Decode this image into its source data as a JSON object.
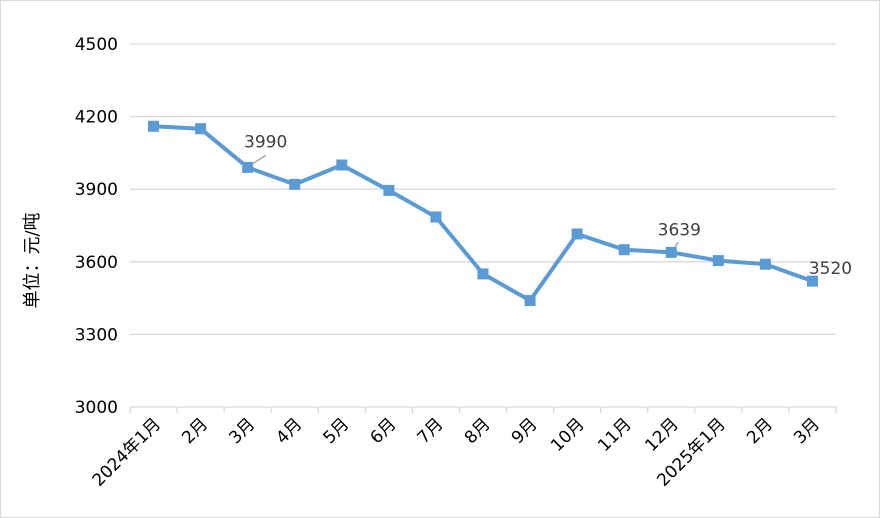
{
  "chart_data": {
    "type": "line",
    "title": "",
    "xlabel": "",
    "ylabel": "单位：元/吨",
    "ylim": [
      3000,
      4500
    ],
    "yticks": [
      3000,
      3300,
      3600,
      3900,
      4200,
      4500
    ],
    "grid": true,
    "legend": "none",
    "categories": [
      "2024年1月",
      "2月",
      "3月",
      "4月",
      "5月",
      "6月",
      "7月",
      "8月",
      "9月",
      "10月",
      "11月",
      "12月",
      "2025年1月",
      "2月",
      "3月"
    ],
    "series": [
      {
        "color": "#5b9bd5",
        "values": [
          4160,
          4150,
          3990,
          3920,
          4000,
          3895,
          3785,
          3550,
          3440,
          3715,
          3650,
          3639,
          3605,
          3590,
          3520
        ]
      }
    ],
    "data_labels": [
      {
        "index": 2,
        "text": "3990"
      },
      {
        "index": 11,
        "text": "3639"
      },
      {
        "index": 14,
        "text": "3520"
      }
    ]
  }
}
